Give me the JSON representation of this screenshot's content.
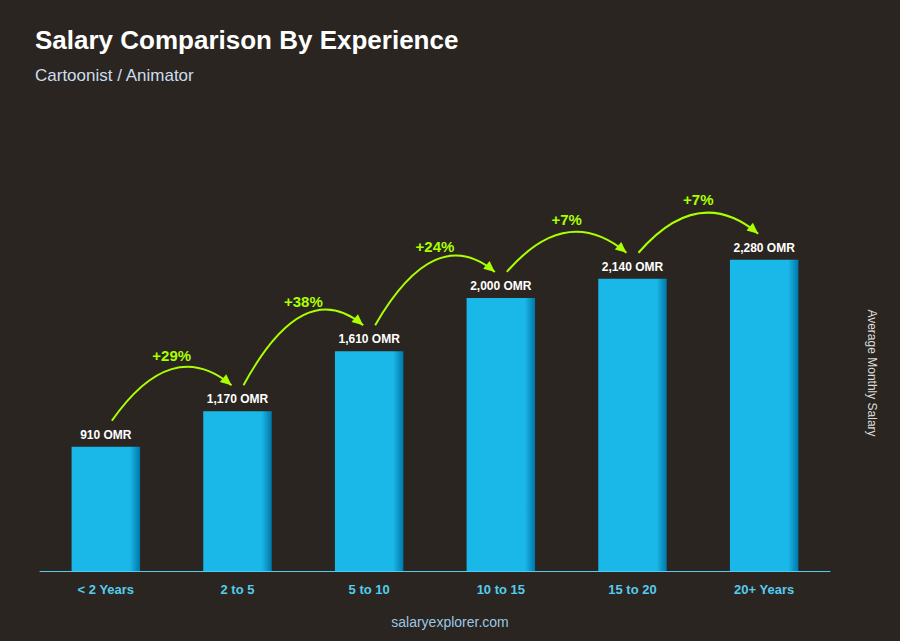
{
  "chart_data": {
    "type": "bar",
    "title": "Salary Comparison By Experience",
    "subtitle": "Cartoonist / Animator",
    "ylabel": "Average Monthly Salary",
    "categories": [
      "< 2 Years",
      "2 to 5",
      "5 to 10",
      "10 to 15",
      "15 to 20",
      "20+ Years"
    ],
    "values": [
      910,
      1170,
      1610,
      2000,
      2140,
      2280
    ],
    "value_labels": [
      "910 OMR",
      "1,170 OMR",
      "1,610 OMR",
      "2,000 OMR",
      "2,140 OMR",
      "2,280 OMR"
    ],
    "data_labels": true,
    "annotations": [
      "+29%",
      "+38%",
      "+24%",
      "+7%",
      "+7%"
    ],
    "watermark": "salaryexplorer.com",
    "color": "#1ab8e8",
    "ylim": [
      0,
      2900
    ],
    "tick_labels": "x",
    "grid": false
  }
}
